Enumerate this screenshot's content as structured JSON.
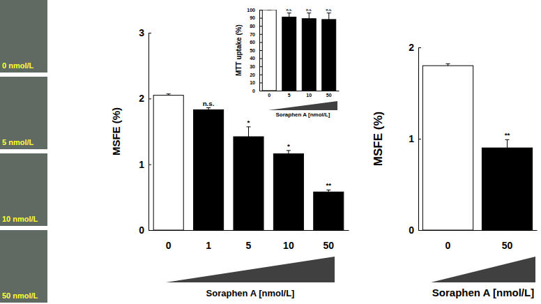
{
  "image_labels": [
    "0 nmol/L",
    "5 nmol/L",
    "10 nmol/L",
    "50 nmol/L"
  ],
  "chart_data": [
    {
      "type": "bar",
      "x_label": "Soraphen A [nmol/L]",
      "y_label": "MSFE (%)",
      "categories": [
        "0",
        "1",
        "5",
        "10",
        "50"
      ],
      "values": [
        2.05,
        1.83,
        1.42,
        1.16,
        0.58
      ],
      "errors": [
        0.02,
        0.03,
        0.15,
        0.05,
        0.03
      ],
      "annotations": [
        null,
        "n.s.",
        "*",
        "*",
        "**"
      ],
      "colors": [
        "#ffffff",
        "#000000",
        "#000000",
        "#000000",
        "#000000"
      ],
      "ylim": [
        0,
        3
      ],
      "yticks": [
        0,
        1,
        2,
        3
      ]
    },
    {
      "type": "bar",
      "x_label": "Soraphen A [nmol/L]",
      "y_label": "MTT uptake (%)",
      "categories": [
        "0",
        "5",
        "10",
        "50"
      ],
      "values": [
        100,
        91,
        89,
        88
      ],
      "errors": [
        0,
        5,
        7,
        8
      ],
      "annotations": [
        null,
        "n.s.",
        "n.s.",
        "n.s."
      ],
      "colors": [
        "#ffffff",
        "#000000",
        "#000000",
        "#000000"
      ],
      "ylim": [
        0,
        100
      ],
      "yticks": [
        0,
        10,
        20,
        30,
        40,
        50,
        60,
        70,
        80,
        90,
        100
      ]
    },
    {
      "type": "bar",
      "x_label": "Soraphen A [nmol/L]",
      "y_label": "MSFE (%)",
      "categories": [
        "0",
        "50"
      ],
      "values": [
        1.8,
        0.9
      ],
      "errors": [
        0.02,
        0.09
      ],
      "annotations": [
        null,
        "**"
      ],
      "colors": [
        "#ffffff",
        "#000000"
      ],
      "ylim": [
        0,
        2
      ],
      "yticks": [
        0,
        1,
        2
      ]
    }
  ]
}
